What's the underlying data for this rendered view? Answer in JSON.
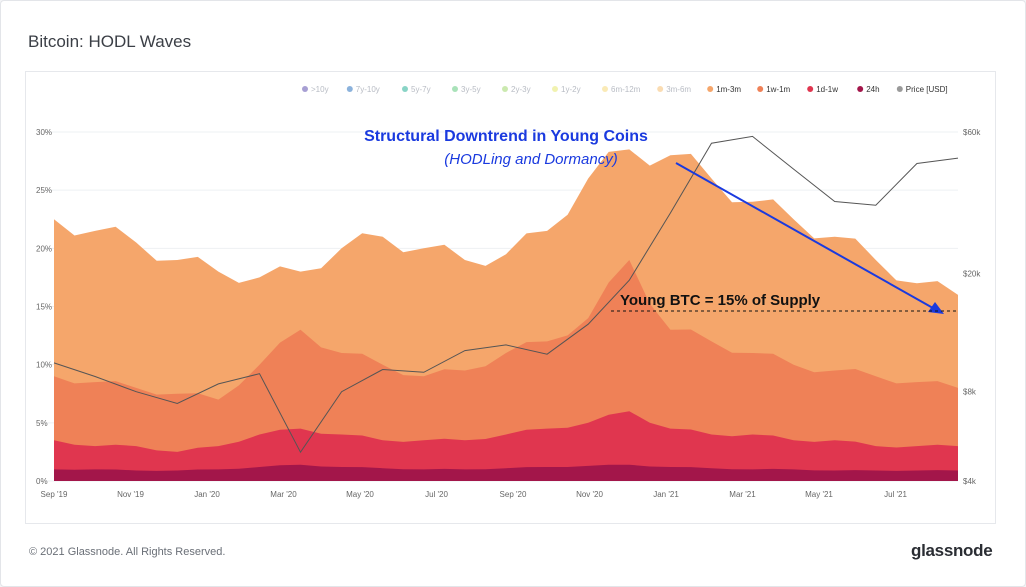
{
  "page": {
    "title": "Bitcoin: HODL Waves",
    "copyright": "© 2021 Glassnode. All Rights Reserved.",
    "brand": "glassnode",
    "watermark": "glassnode"
  },
  "chart_data": {
    "type": "area",
    "title": "Bitcoin: HODL Waves",
    "legend": [
      {
        "name": ">10y",
        "color": "#6c5fb5",
        "active": false
      },
      {
        "name": "7y-10y",
        "color": "#3d7fc4",
        "active": false
      },
      {
        "name": "5y-7y",
        "color": "#3bb7a0",
        "active": false
      },
      {
        "name": "3y-5y",
        "color": "#6fcf8a",
        "active": false
      },
      {
        "name": "2y-3y",
        "color": "#a8db7a",
        "active": false
      },
      {
        "name": "1y-2y",
        "color": "#e8ea7c",
        "active": false
      },
      {
        "name": "6m-12m",
        "color": "#f6dc86",
        "active": false
      },
      {
        "name": "3m-6m",
        "color": "#f6c57e",
        "active": false
      },
      {
        "name": "1m-3m",
        "color": "#f5a66b",
        "active": true
      },
      {
        "name": "1w-1m",
        "color": "#ef8157",
        "active": true
      },
      {
        "name": "1d-1w",
        "color": "#e0364f",
        "active": true
      },
      {
        "name": "24h",
        "color": "#a3164a",
        "active": true
      },
      {
        "name": "Price [USD]",
        "color": "#9a9a9a",
        "active": true
      }
    ],
    "x_ticks": [
      "Sep '19",
      "Nov '19",
      "Jan '20",
      "Mar '20",
      "May '20",
      "Jul '20",
      "Sep '20",
      "Nov '20",
      "Jan '21",
      "Mar '21",
      "May '21",
      "Jul '21"
    ],
    "y_ticks": [
      "0%",
      "5%",
      "10%",
      "15%",
      "20%",
      "25%",
      "30%"
    ],
    "ylim": [
      0,
      30
    ],
    "y2_ticks": [
      "$4k",
      "$8k",
      "$20k",
      "$60k"
    ],
    "y2_scale": "log",
    "series": [
      {
        "name": "1m-3m",
        "values": [
          22.5,
          21.5,
          20.5,
          19,
          18,
          17.5,
          18,
          20,
          21,
          20,
          19,
          19.5,
          21.5,
          26,
          28.5,
          28,
          26,
          24,
          22.5,
          21,
          19,
          17,
          16
        ]
      },
      {
        "name": "1w-1m",
        "values": [
          9,
          8.5,
          8,
          7.5,
          7,
          10,
          13,
          11,
          10,
          9,
          9.5,
          11,
          12,
          14,
          19,
          13,
          12,
          11,
          10,
          9.5,
          9,
          8.5,
          8
        ]
      },
      {
        "name": "1d-1w",
        "values": [
          3.5,
          3,
          3,
          2.5,
          3,
          4,
          4.5,
          4,
          3.5,
          3.5,
          3.5,
          4,
          4.5,
          5,
          6,
          4.5,
          4,
          4,
          3.5,
          3.5,
          3,
          3,
          3
        ]
      },
      {
        "name": "24h",
        "values": [
          1,
          1,
          0.9,
          0.9,
          1,
          1.2,
          1.4,
          1.2,
          1.1,
          1,
          1,
          1.1,
          1.2,
          1.3,
          1.4,
          1.2,
          1.1,
          1,
          1,
          0.9,
          0.9,
          0.9,
          0.9
        ]
      },
      {
        "name": "Price [USD]",
        "values": [
          10000,
          9000,
          8000,
          7300,
          8500,
          9200,
          5000,
          8000,
          9500,
          9300,
          11000,
          11500,
          10700,
          13500,
          19000,
          32000,
          55000,
          58000,
          45000,
          35000,
          34000,
          47000,
          49000
        ]
      }
    ],
    "annotations": {
      "headline": "Structural Downtrend in Young Coins",
      "subline": "(HODLing and Dormancy)",
      "level_label": "Young BTC = 15% of Supply"
    }
  }
}
